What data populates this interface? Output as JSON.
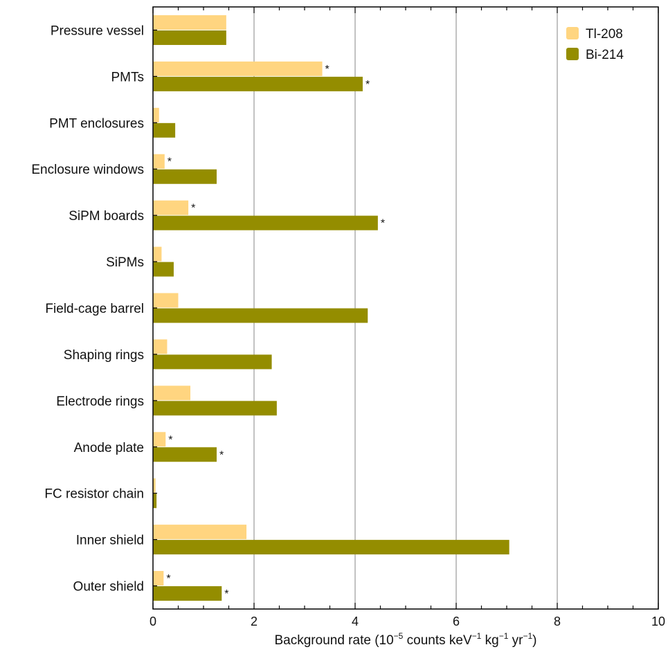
{
  "chart_data": {
    "type": "bar",
    "orientation": "horizontal",
    "categories": [
      "Pressure vessel",
      "PMTs",
      "PMT enclosures",
      "Enclosure windows",
      "SiPM boards",
      "SiPMs",
      "Field-cage barrel",
      "Shaping rings",
      "Electrode rings",
      "Anode plate",
      "FC resistor chain",
      "Inner shield",
      "Outer shield"
    ],
    "series": [
      {
        "name": "Tl-208",
        "color": "#FFD580",
        "values": [
          1.45,
          3.35,
          0.12,
          0.23,
          0.7,
          0.17,
          0.5,
          0.28,
          0.74,
          0.25,
          0.05,
          1.85,
          0.21
        ],
        "starred": [
          false,
          true,
          false,
          true,
          true,
          false,
          false,
          false,
          false,
          true,
          false,
          false,
          true
        ]
      },
      {
        "name": "Bi-214",
        "color": "#948D00",
        "values": [
          1.45,
          4.15,
          0.44,
          1.26,
          4.45,
          0.41,
          4.25,
          2.35,
          2.45,
          1.26,
          0.07,
          7.05,
          1.36
        ],
        "starred": [
          false,
          true,
          false,
          false,
          true,
          false,
          false,
          false,
          false,
          true,
          false,
          false,
          true
        ]
      }
    ],
    "star_symbol": "*",
    "xlim": [
      0,
      10
    ],
    "xticks": [
      0,
      2,
      4,
      6,
      8,
      10
    ],
    "xlabel": {
      "prefix": "Background rate (10",
      "exp1": "−5",
      "mid1": " counts keV",
      "exp2": "−1",
      "mid2": " kg",
      "exp3": "−1",
      "mid3": " yr",
      "exp4": "−1",
      "suffix": ")"
    },
    "ylabel": "",
    "title": "",
    "grid": "vertical",
    "grid_color": "#999999",
    "legend_position": "top-right"
  }
}
